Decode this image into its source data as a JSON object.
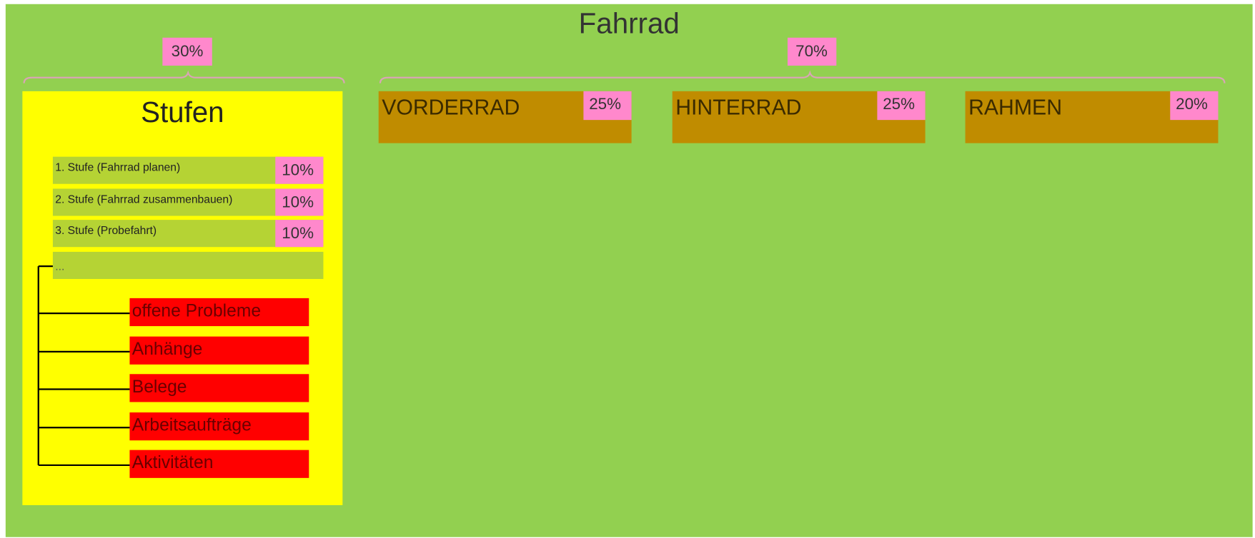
{
  "title": "Fahrrad",
  "left": {
    "percent": "30%",
    "panel_title": "Stufen",
    "stages": [
      {
        "label": "1. Stufe (Fahrrad planen)",
        "percent": "10%"
      },
      {
        "label": "2. Stufe (Fahrrad zusammenbauen)",
        "percent": "10%"
      },
      {
        "label": "3. Stufe (Probefahrt)",
        "percent": "10%"
      }
    ],
    "more": "...",
    "items": [
      "offene Probleme",
      "Anhänge",
      "Belege",
      "Arbeitsaufträge",
      "Aktivitäten"
    ]
  },
  "right": {
    "percent": "70%",
    "components": [
      {
        "name": "VORDERRAD",
        "percent": "25%"
      },
      {
        "name": "HINTERRAD",
        "percent": "25%"
      },
      {
        "name": "RAHMEN",
        "percent": "20%"
      }
    ]
  }
}
